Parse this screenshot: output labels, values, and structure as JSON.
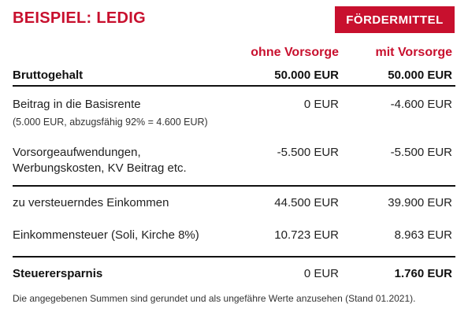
{
  "title": "BEISPIEL: LEDIG",
  "badge": "FÖRDERMITTEL",
  "columns": {
    "ohne": "ohne Vorsorge",
    "mit": "mit Vorsorge"
  },
  "rows": {
    "brutto": {
      "label": "Bruttogehalt",
      "ohne": "50.000 EUR",
      "mit": "50.000 EUR"
    },
    "basisrente": {
      "label": "Beitrag in die Basisrente",
      "sub": "(5.000 EUR, abzugsfähig 92% = 4.600 EUR)",
      "ohne": "0 EUR",
      "mit": "-4.600 EUR"
    },
    "vorsorge": {
      "label_line1": "Vorsorgeaufwendungen,",
      "label_line2": "Werbungskosten, KV Beitrag etc.",
      "ohne": "-5.500 EUR",
      "mit": "-5.500 EUR"
    },
    "einkommen": {
      "label": "zu versteuerndes Einkommen",
      "ohne": "44.500 EUR",
      "mit": "39.900 EUR"
    },
    "steuer": {
      "label": "Einkommensteuer (Soli, Kirche 8%)",
      "ohne": "10.723 EUR",
      "mit": "8.963 EUR"
    },
    "ersparnis": {
      "label": "Steuerersparnis",
      "ohne": "0 EUR",
      "mit": "1.760 EUR"
    }
  },
  "footnote": "Die angegebenen Summen sind gerundet und als ungefähre Werte anzusehen (Stand 01.2021).",
  "colors": {
    "accent": "#c8102e",
    "text": "#222222"
  }
}
